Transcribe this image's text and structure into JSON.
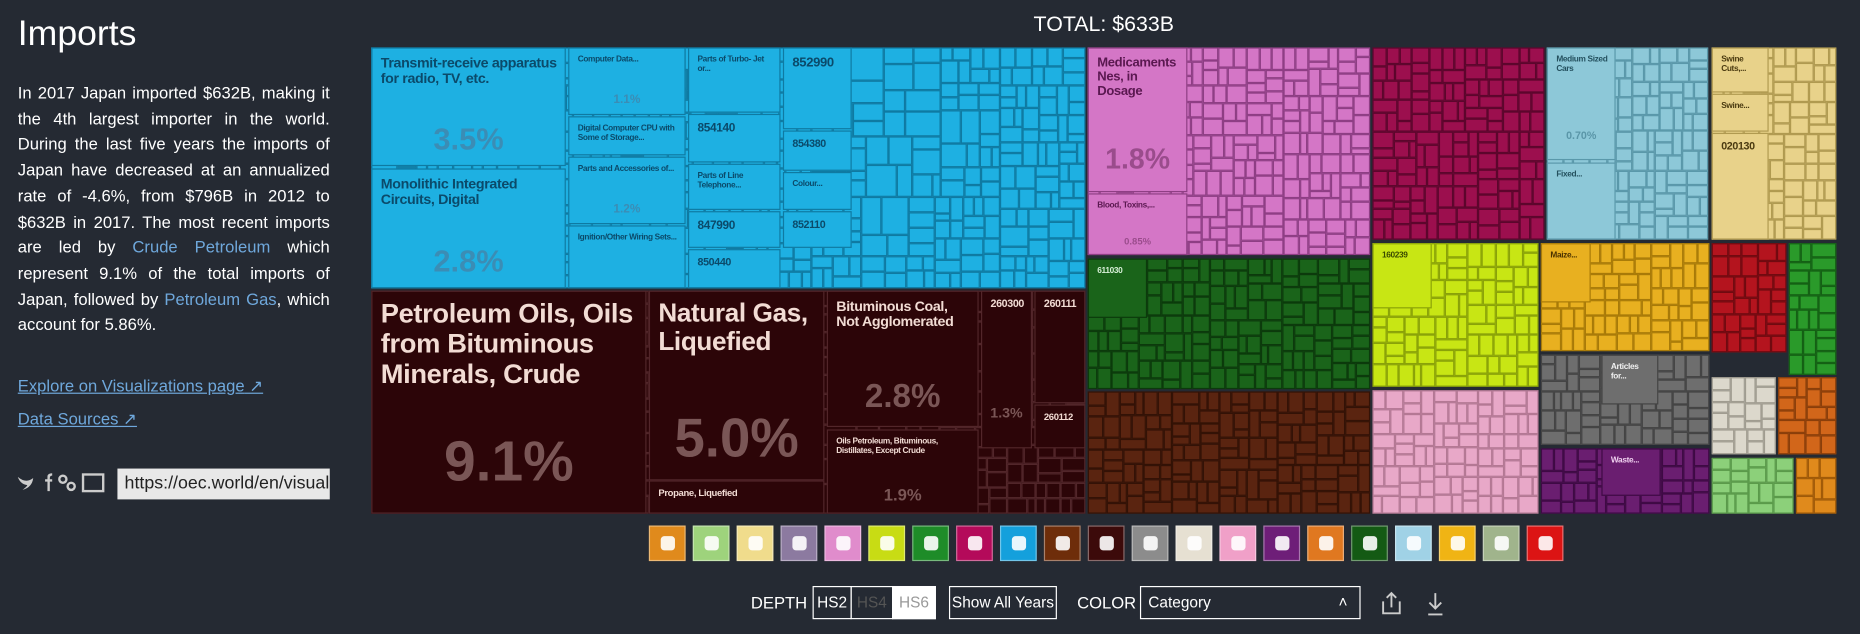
{
  "sidebar": {
    "title": "Imports",
    "paragraph": [
      "In 2017 Japan imported $632B, making it the 4th largest importer in the world. During the last five years the imports of Japan have decreased at an annualized rate of -4.6%, from $796B in 2012 to $632B in 2017. The most recent imports are led by ",
      "Crude Petroleum",
      " which represent 9.1% of the total imports of Japan, followed by ",
      "Petroleum Gas",
      ", which account for 5.86%."
    ],
    "links": [
      "Explore on Visualizations page",
      "Data Sources"
    ],
    "share_url": "https://oec.world/en/visuali"
  },
  "treemap": {
    "title": "TOTAL: $633B",
    "cells": [
      {
        "label": "Transmit-receive apparatus for radio, TV, etc.",
        "share": "3.5%"
      },
      {
        "label": "Monolithic Integrated Circuits, Digital",
        "share": "2.8%"
      },
      {
        "label": "Computer Data...",
        "share": "1.1%"
      },
      {
        "label": "Digital Computer CPU with Some of Storage..."
      },
      {
        "label": "Parts and Accessories of...",
        "share": "1.2%"
      },
      {
        "label": "Ignition/Other Wiring Sets..."
      },
      {
        "label": "Parts of Turbo- Jet or..."
      },
      {
        "label": "854140"
      },
      {
        "label": "Parts of Line Telephone..."
      },
      {
        "label": "847990"
      },
      {
        "label": "850440"
      },
      {
        "label": "852990"
      },
      {
        "label": "854380"
      },
      {
        "label": "Colour..."
      },
      {
        "label": "852110"
      },
      {
        "label": "Petroleum Oils, Oils from Bituminous Minerals, Crude",
        "share": "9.1%"
      },
      {
        "label": "Natural Gas, Liquefied",
        "share": "5.0%"
      },
      {
        "label": "Propane, Liquefied"
      },
      {
        "label": "Bituminous Coal, Not Agglomerated",
        "share": "2.8%"
      },
      {
        "label": "Oils Petroleum, Bituminous, Distillates, Except Crude",
        "share": "1.9%"
      },
      {
        "label": "260300",
        "share": "1.3%"
      },
      {
        "label": "260111"
      },
      {
        "label": "260112"
      },
      {
        "label": "Medicaments Nes, in Dosage",
        "share": "1.8%"
      },
      {
        "label": "Blood, Toxins,...",
        "share": "0.85%"
      },
      {
        "label": "611030"
      },
      {
        "label": "Medium Sized Cars",
        "share": "0.70%"
      },
      {
        "label": "Fixed..."
      },
      {
        "label": "Swine Cuts,..."
      },
      {
        "label": "Swine..."
      },
      {
        "label": "020130"
      },
      {
        "label": "160239"
      },
      {
        "label": "Maize..."
      },
      {
        "label": "Articles for..."
      },
      {
        "label": "Waste..."
      }
    ]
  },
  "controls": {
    "depth_label": "DEPTH",
    "depth_options": [
      "HS2",
      "HS4",
      "HS6"
    ],
    "show_all_years": "Show All Years",
    "color_label": "COLOR",
    "color_value": "Category"
  }
}
